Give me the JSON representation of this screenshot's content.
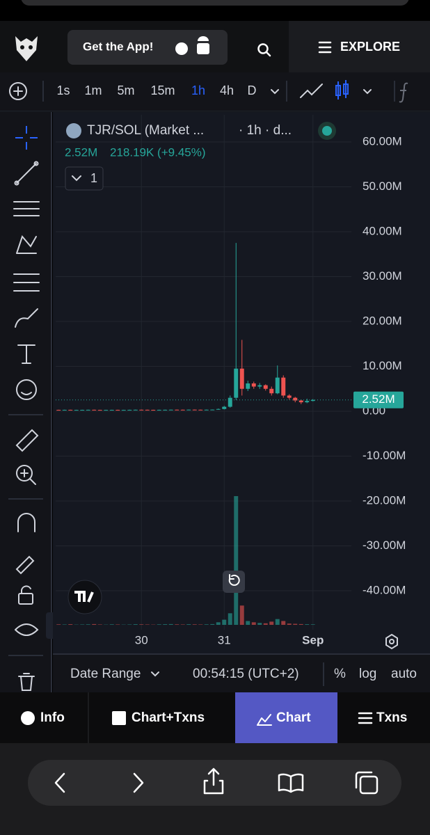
{
  "header": {
    "app_button": "Get the App!",
    "explore": "EXPLORE"
  },
  "toolbar": {
    "intervals": [
      "1s",
      "1m",
      "5m",
      "15m",
      "1h",
      "4h",
      "D"
    ],
    "active_interval": "1h"
  },
  "legend": {
    "symbol": "TJR/SOL (Market ...",
    "interval": "· 1h · d...",
    "price": "2.52M",
    "change": "218.19K (+9.45%)",
    "indicators_count": "1"
  },
  "chart_data": {
    "type": "candlestick",
    "categories": [
      null,
      null,
      null,
      null,
      null,
      null,
      null,
      null,
      null,
      null,
      null,
      null,
      null,
      null,
      "30",
      null,
      null,
      null,
      null,
      null,
      null,
      null,
      null,
      null,
      null,
      null,
      null,
      null,
      "31",
      null,
      null,
      null,
      null,
      null,
      null,
      null,
      null,
      null,
      null,
      null,
      null,
      null,
      null,
      "Sep",
      null,
      null,
      null,
      null,
      null,
      null
    ],
    "open": [
      310000,
      300000,
      320000,
      290000,
      300000,
      310000,
      330000,
      300000,
      280000,
      300000,
      310000,
      290000,
      300000,
      320000,
      340000,
      330000,
      310000,
      300000,
      320000,
      330000,
      350000,
      340000,
      330000,
      360000,
      340000,
      330000,
      350000,
      370000,
      500000,
      1000000,
      3000000,
      9500000,
      5000000,
      6200000,
      5500000,
      5800000,
      5000000,
      4000000,
      7500000,
      3500000,
      3000000,
      2400000,
      2000000,
      2300000,
      null,
      null,
      null,
      null,
      null,
      null
    ],
    "high": [
      340000,
      350000,
      350000,
      330000,
      340000,
      360000,
      360000,
      330000,
      330000,
      340000,
      340000,
      330000,
      350000,
      370000,
      370000,
      360000,
      340000,
      350000,
      360000,
      380000,
      380000,
      370000,
      390000,
      390000,
      370000,
      380000,
      400000,
      600000,
      1200000,
      3500000,
      37500000,
      15900000,
      6800000,
      6600000,
      6300000,
      6000000,
      5500000,
      10200000,
      8000000,
      3800000,
      3200000,
      2600000,
      2800000,
      2700000,
      null,
      null,
      null,
      null,
      null,
      null
    ],
    "low": [
      270000,
      270000,
      260000,
      260000,
      270000,
      280000,
      270000,
      250000,
      250000,
      270000,
      260000,
      260000,
      270000,
      290000,
      300000,
      280000,
      270000,
      270000,
      290000,
      300000,
      310000,
      300000,
      300000,
      310000,
      300000,
      300000,
      320000,
      340000,
      400000,
      800000,
      2500000,
      3500000,
      4500000,
      5000000,
      5000000,
      4600000,
      3500000,
      3800000,
      3000000,
      2600000,
      2000000,
      1600000,
      1800000,
      2200000,
      null,
      null,
      null,
      null,
      null,
      null
    ],
    "close": [
      300000,
      320000,
      290000,
      300000,
      310000,
      330000,
      300000,
      280000,
      300000,
      310000,
      290000,
      300000,
      320000,
      340000,
      330000,
      310000,
      300000,
      320000,
      330000,
      350000,
      340000,
      330000,
      360000,
      340000,
      330000,
      350000,
      370000,
      500000,
      1000000,
      3000000,
      9500000,
      5000000,
      6200000,
      5500000,
      5800000,
      5000000,
      4000000,
      7500000,
      3500000,
      3000000,
      2400000,
      2000000,
      2300000,
      2520000,
      null,
      null,
      null,
      null,
      null,
      null
    ],
    "volume": [
      4,
      3,
      5,
      2,
      3,
      4,
      6,
      3,
      2,
      4,
      3,
      2,
      3,
      5,
      4,
      3,
      2,
      4,
      5,
      6,
      4,
      3,
      5,
      4,
      3,
      4,
      6,
      20,
      40,
      90,
      1000,
      150,
      30,
      20,
      15,
      12,
      25,
      45,
      30,
      10,
      8,
      6,
      5,
      4,
      null,
      null,
      null,
      null,
      null,
      null
    ],
    "up_color": "#26a69a",
    "down_color": "#ef5350",
    "ylim": [
      -48680000,
      66050000
    ],
    "yticks": [
      {
        "value": 60000000,
        "label": "60.00M"
      },
      {
        "value": 50000000,
        "label": "50.00M"
      },
      {
        "value": 40000000,
        "label": "40.00M"
      },
      {
        "value": 30000000,
        "label": "30.00M"
      },
      {
        "value": 20000000,
        "label": "20.00M"
      },
      {
        "value": 10000000,
        "label": "10.00M"
      },
      {
        "value": 0,
        "label": "0.00"
      },
      {
        "value": -10000000,
        "label": "-10.00M"
      },
      {
        "value": -20000000,
        "label": "-20.00M"
      },
      {
        "value": -30000000,
        "label": "-30.00M"
      },
      {
        "value": -40000000,
        "label": "-40.00M"
      }
    ],
    "last_price": {
      "value": 2520000,
      "label": "2.52M"
    },
    "grid": true
  },
  "footer": {
    "date_range": "Date Range",
    "clock": "00:54:15 (UTC+2)",
    "percent": "%",
    "log": "log",
    "auto": "auto"
  },
  "tabs": [
    "Info",
    "Chart+Txns",
    "Chart",
    "Txns"
  ]
}
